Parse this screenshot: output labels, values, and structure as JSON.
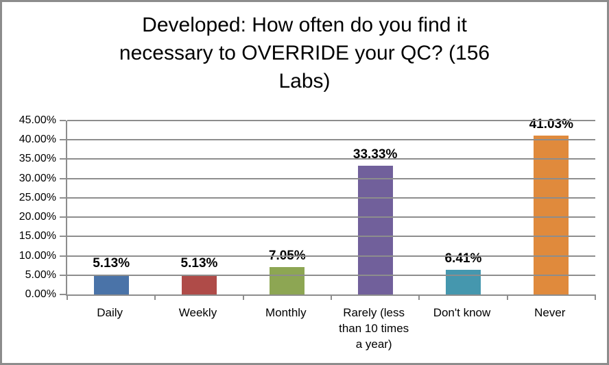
{
  "frame": {
    "border_color": "#8c8c8c",
    "background_color": "#ffffff"
  },
  "chart_data": {
    "type": "bar",
    "title": "Developed: How often do you find it necessary to OVERRIDE your QC? (156 Labs)",
    "title_lines": [
      "Developed: How often do you find it",
      "necessary to OVERRIDE your QC? (156",
      "Labs)"
    ],
    "categories": [
      "Daily",
      "Weekly",
      "Monthly",
      "Rarely (less than 10 times a year)",
      "Don't know",
      "Never"
    ],
    "values": [
      5.13,
      5.13,
      7.05,
      33.33,
      6.41,
      41.03
    ],
    "value_labels": [
      "5.13%",
      "5.13%",
      "7.05%",
      "33.33%",
      "6.41%",
      "41.03%"
    ],
    "bar_colors": [
      "#4a73a8",
      "#af4b48",
      "#8da653",
      "#71609b",
      "#4597ae",
      "#e08a3c"
    ],
    "xlabel": "",
    "ylabel": "",
    "ylim": [
      0,
      45
    ],
    "ytick_step": 5,
    "ytick_labels": [
      "0.00%",
      "5.00%",
      "10.00%",
      "15.00%",
      "20.00%",
      "25.00%",
      "30.00%",
      "35.00%",
      "40.00%",
      "45.00%"
    ],
    "grid": true,
    "gridline_color": "#8d8d8d",
    "axis_color": "#8d8d8d",
    "text_color": "#000000",
    "legend": "none"
  }
}
